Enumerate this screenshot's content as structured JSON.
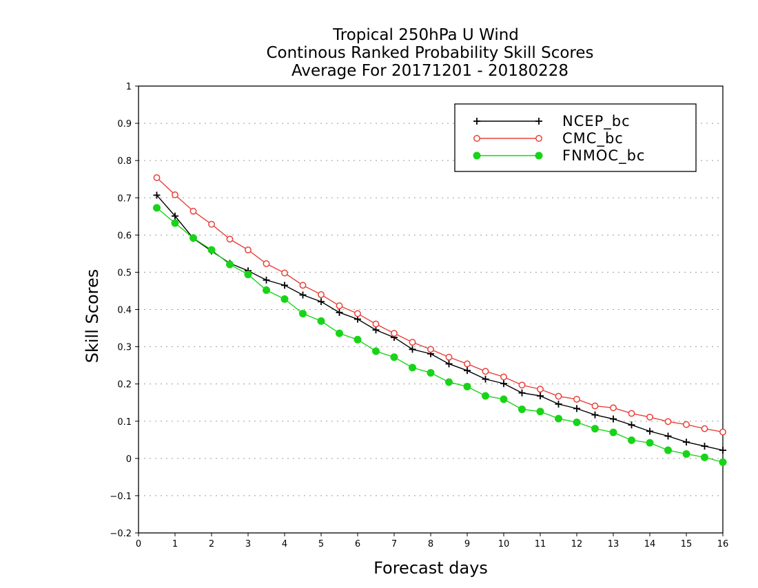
{
  "chart_data": {
    "type": "line",
    "title_lines": [
      "Tropical 250hPa U Wind",
      "Continous Ranked Probability Skill Scores",
      "Average For 20171201 - 20180228"
    ],
    "xlabel": "Forecast days",
    "ylabel": "Skill Scores",
    "xlim": [
      0,
      16
    ],
    "ylim": [
      -0.2,
      1
    ],
    "x_ticks": [
      0,
      1,
      2,
      3,
      4,
      5,
      6,
      7,
      8,
      9,
      10,
      11,
      12,
      13,
      14,
      15,
      16
    ],
    "x_tick_labels": [
      "0",
      "1",
      "2",
      "3",
      "4",
      "5",
      "6",
      "7",
      "8",
      "9",
      "10",
      "11",
      "12",
      "13",
      "14",
      "15",
      "16"
    ],
    "y_ticks": [
      -0.2,
      -0.1,
      0,
      0.1,
      0.2,
      0.3,
      0.4,
      0.5,
      0.6,
      0.7,
      0.8,
      0.9,
      1
    ],
    "y_tick_labels": [
      "−0.2",
      "−0.1",
      "0",
      "0.1",
      "0.2",
      "0.3",
      "0.4",
      "0.5",
      "0.6",
      "0.7",
      "0.8",
      "0.9",
      "1"
    ],
    "grid": "horizontal dotted",
    "legend_position": "top-right",
    "x": [
      0.5,
      1,
      1.5,
      2,
      2.5,
      3,
      3.5,
      4,
      4.5,
      5,
      5.5,
      6,
      6.5,
      7,
      7.5,
      8,
      8.5,
      9,
      9.5,
      10,
      10.5,
      11,
      11.5,
      12,
      12.5,
      13,
      13.5,
      14,
      14.5,
      15,
      15.5,
      16
    ],
    "series": [
      {
        "name": "NCEP_bc",
        "color": "#000000",
        "marker": "plus",
        "values": [
          0.707,
          0.651,
          0.591,
          0.557,
          0.524,
          0.504,
          0.479,
          0.465,
          0.439,
          0.421,
          0.392,
          0.374,
          0.345,
          0.325,
          0.293,
          0.281,
          0.254,
          0.236,
          0.213,
          0.201,
          0.176,
          0.168,
          0.146,
          0.134,
          0.117,
          0.106,
          0.09,
          0.073,
          0.06,
          0.044,
          0.033,
          0.022
        ]
      },
      {
        "name": "CMC_bc",
        "color": "#e8403a",
        "marker": "open-circle",
        "values": [
          0.754,
          0.708,
          0.664,
          0.629,
          0.589,
          0.56,
          0.523,
          0.498,
          0.465,
          0.44,
          0.41,
          0.389,
          0.361,
          0.336,
          0.312,
          0.293,
          0.272,
          0.254,
          0.234,
          0.219,
          0.197,
          0.186,
          0.167,
          0.159,
          0.141,
          0.136,
          0.121,
          0.111,
          0.099,
          0.091,
          0.08,
          0.071
        ]
      },
      {
        "name": "FNMOC_bc",
        "color": "#18d418",
        "marker": "filled-circle",
        "values": [
          0.673,
          0.632,
          0.592,
          0.56,
          0.521,
          0.494,
          0.452,
          0.428,
          0.389,
          0.369,
          0.336,
          0.319,
          0.288,
          0.272,
          0.244,
          0.23,
          0.205,
          0.193,
          0.168,
          0.159,
          0.132,
          0.126,
          0.107,
          0.097,
          0.08,
          0.07,
          0.049,
          0.042,
          0.022,
          0.012,
          0.003,
          -0.01
        ]
      }
    ]
  }
}
